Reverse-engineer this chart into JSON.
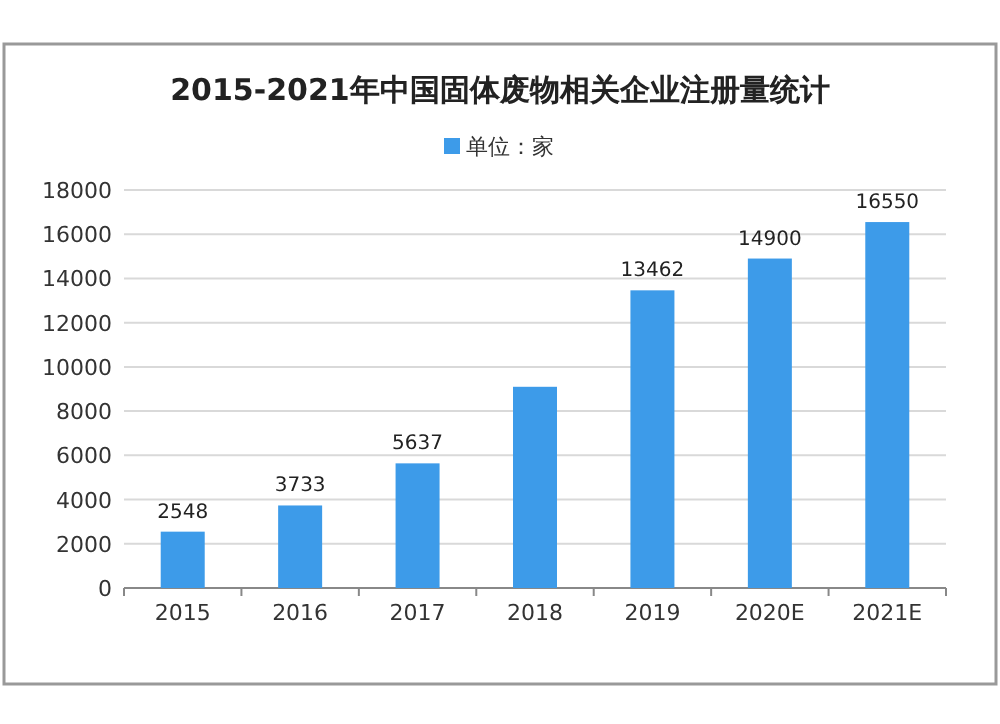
{
  "chart_data": {
    "type": "bar",
    "title": "2015-2021年中国固体废物相关企业注册量统计",
    "categories": [
      "2015",
      "2016",
      "2017",
      "2018",
      "2019",
      "2020E",
      "2021E"
    ],
    "series": [
      {
        "name": "单位：家",
        "color": "#3d9be9",
        "values": [
          2548,
          3733,
          5637,
          9100,
          13462,
          14900,
          16550
        ],
        "value_labels": [
          "2548",
          "3733",
          "5637",
          null,
          "13462",
          "14900",
          "16550"
        ]
      }
    ],
    "ylim": [
      0,
      18000
    ],
    "yticks": [
      0,
      2000,
      4000,
      6000,
      8000,
      10000,
      12000,
      14000,
      16000,
      18000
    ],
    "grid": "y",
    "legend": "top"
  }
}
